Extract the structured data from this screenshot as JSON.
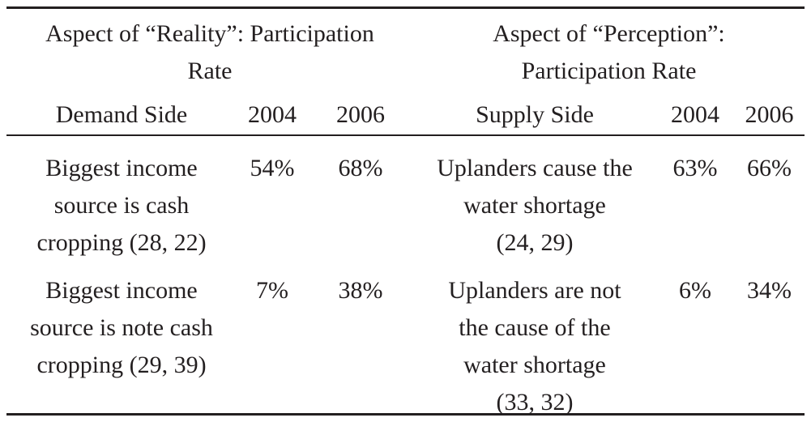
{
  "table": {
    "group_headers": {
      "reality": [
        "Aspect of “Reality”: Participation",
        "Rate"
      ],
      "perception": [
        "Aspect of “Perception”:",
        "Participation Rate"
      ]
    },
    "sub_headers": {
      "demand_side": "Demand Side",
      "reality_2004": "2004",
      "reality_2006": "2006",
      "supply_side": "Supply Side",
      "perception_2004": "2004",
      "perception_2006": "2006"
    },
    "rows": [
      {
        "demand_lines": [
          "Biggest income",
          "source is cash",
          "cropping (28, 22)"
        ],
        "r2004": "54%",
        "r2006": "68%",
        "supply_lines": [
          "Uplanders cause the",
          "water shortage",
          "(24, 29)"
        ],
        "p2004": "63%",
        "p2006": "66%"
      },
      {
        "demand_lines": [
          "Biggest income",
          "source is note cash",
          "cropping (29, 39)"
        ],
        "r2004": "7%",
        "r2006": "38%",
        "supply_lines": [
          "Uplanders are not",
          "the cause of the",
          "water shortage",
          "(33, 32)"
        ],
        "p2004": "6%",
        "p2006": "34%"
      }
    ]
  }
}
